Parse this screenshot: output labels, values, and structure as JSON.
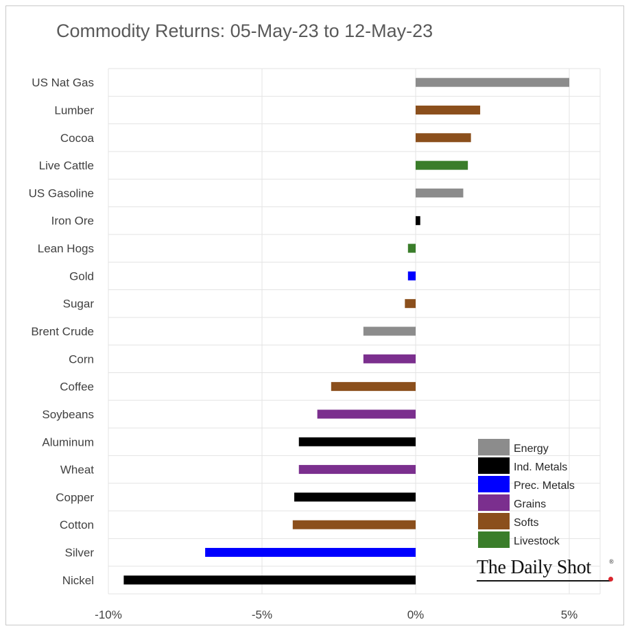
{
  "chart_data": {
    "type": "bar",
    "orientation": "horizontal",
    "title": "Commodity Returns: 05-May-23 to 12-May-23",
    "xlabel": "",
    "ylabel": "",
    "xlim": [
      -10,
      5
    ],
    "x_ticks": [
      -10,
      -5,
      0,
      5
    ],
    "x_tick_labels": [
      "-10%",
      "-5%",
      "0%",
      "5%"
    ],
    "grid": true,
    "legend_position": "bottom-right",
    "categories": [
      "US Nat Gas",
      "Lumber",
      "Cocoa",
      "Live Cattle",
      "US Gasoline",
      "Iron Ore",
      "Lean Hogs",
      "Gold",
      "Sugar",
      "Brent Crude",
      "Corn",
      "Coffee",
      "Soybeans",
      "Aluminum",
      "Wheat",
      "Copper",
      "Cotton",
      "Silver",
      "Nickel"
    ],
    "values": [
      5.0,
      2.1,
      1.8,
      1.7,
      1.55,
      0.15,
      -0.25,
      -0.25,
      -0.35,
      -1.7,
      -1.7,
      -2.75,
      -3.2,
      -3.8,
      -3.8,
      -3.95,
      -4.0,
      -6.85,
      -9.5
    ],
    "groups": [
      "Energy",
      "Softs",
      "Softs",
      "Livestock",
      "Energy",
      "Ind. Metals",
      "Livestock",
      "Prec. Metals",
      "Softs",
      "Energy",
      "Grains",
      "Softs",
      "Grains",
      "Ind. Metals",
      "Grains",
      "Ind. Metals",
      "Softs",
      "Prec. Metals",
      "Ind. Metals"
    ],
    "legend": [
      {
        "name": "Energy",
        "color": "#8c8c8c"
      },
      {
        "name": "Ind. Metals",
        "color": "#000000"
      },
      {
        "name": "Prec. Metals",
        "color": "#0000ff"
      },
      {
        "name": "Grains",
        "color": "#7b2f8e"
      },
      {
        "name": "Softs",
        "color": "#8b4f1c"
      },
      {
        "name": "Livestock",
        "color": "#3a7d2a"
      }
    ]
  },
  "logo_text": "The Daily Shot",
  "logo_mark": "®"
}
